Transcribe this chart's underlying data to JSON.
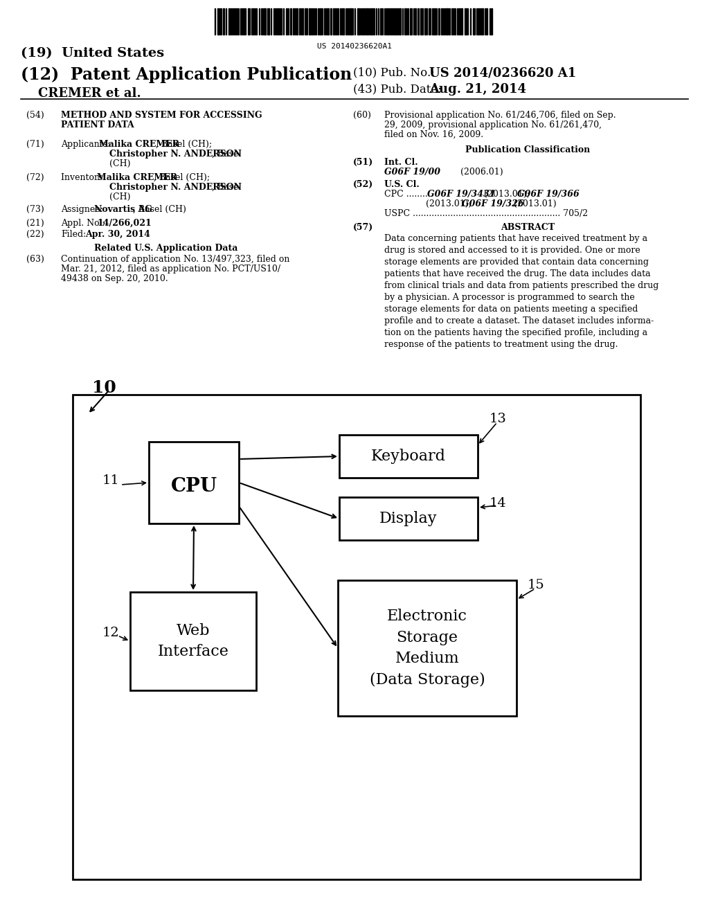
{
  "background_color": "#ffffff",
  "barcode_text": "US 20140236620A1",
  "title_19": "(19)  United States",
  "title_12": "(12)  Patent Application Publication",
  "pub_no_label": "(10) Pub. No.:",
  "pub_no_value": "US 2014/0236620 A1",
  "pub_date_label": "(43) Pub. Date:",
  "pub_date_value": "Aug. 21, 2014",
  "author_line": "CREMER et al.",
  "field54_text1": "METHOD AND SYSTEM FOR ACCESSING",
  "field54_text2": "PATIENT DATA",
  "field60_line1": "Provisional application No. 61/246,706, filed on Sep.",
  "field60_line2": "29, 2009, provisional application No. 61/261,470,",
  "field60_line3": "filed on Nov. 16, 2009.",
  "pub_class_title": "Publication Classification",
  "int_cl_label": "Int. Cl.",
  "g06f1900": "G06F 19/00",
  "g06f1900_date": "(2006.01)",
  "us_cl_label": "U.S. Cl.",
  "cpc_prefix": "CPC .......... ",
  "cpc_val1": "G06F 19/3431",
  "cpc_val1_date": " (2013.01); ",
  "cpc_val2": "G06F 19/366",
  "cpc_val2_date": "(2013.01); ",
  "cpc_val3": "G06F 19/326",
  "cpc_val3_date": " (2013.01)",
  "uspc_line": "USPC ....................................................... 705/2",
  "abstract_title": "ABSTRACT",
  "abstract_text": "Data concerning patients that have received treatment by a\ndrug is stored and accessed to it is provided. One or more\nstorage elements are provided that contain data concerning\npatients that have received the drug. The data includes data\nfrom clinical trials and data from patients prescribed the drug\nby a physician. A processor is programmed to search the\nstorage elements for data on patients meeting a specified\nprofile and to create a dataset. The dataset includes informa-\ntion on the patients having the specified profile, including a\nresponse of the patients to treatment using the drug.",
  "related_us_title": "Related U.S. Application Data",
  "field63_line1": "Continuation of application No. 13/497,323, filed on",
  "field63_line2": "Mar. 21, 2012, filed as application No. PCT/US10/",
  "field63_line3": "49438 on Sep. 20, 2010.",
  "diagram_label": "10",
  "node11_label": "11",
  "node12_label": "12",
  "node13_label": "13",
  "node14_label": "14",
  "node15_label": "15",
  "cpu_text": "CPU",
  "keyboard_text": "Keyboard",
  "display_text": "Display",
  "web_text": "Web\nInterface",
  "storage_text": "Electronic\nStorage\nMedium\n(Data Storage)"
}
